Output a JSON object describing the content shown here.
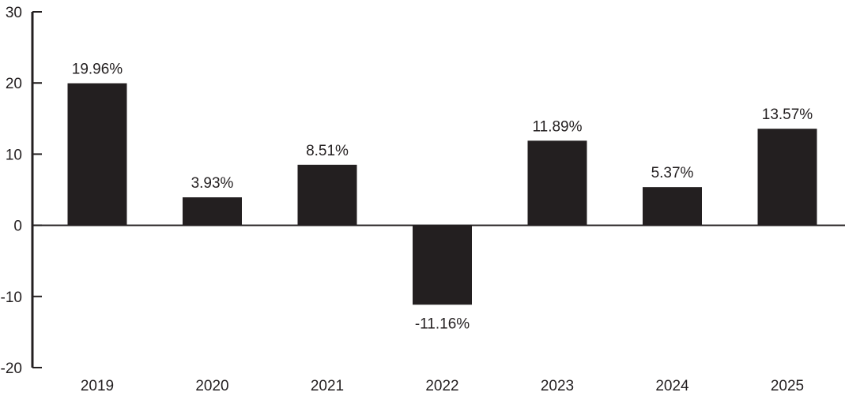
{
  "chart_data": {
    "type": "bar",
    "title": "",
    "xlabel": "",
    "ylabel": "",
    "categories": [
      "2019",
      "2020",
      "2021",
      "2022",
      "2023",
      "2024",
      "2025"
    ],
    "values": [
      19.96,
      3.93,
      8.51,
      -11.16,
      11.89,
      5.37,
      13.57
    ],
    "data_labels": [
      "19.96%",
      "3.93%",
      "8.51%",
      "-11.16%",
      "11.89%",
      "5.37%",
      "13.57%"
    ],
    "ylim": [
      -20,
      30
    ],
    "yticks": [
      30,
      20,
      10,
      0,
      -10,
      -20
    ],
    "ytick_labels": [
      "30",
      "20",
      "10",
      "0",
      "-10",
      "-20"
    ],
    "grid": false,
    "legend": "none",
    "bar_color": "#231f20",
    "axis_color": "#231f20"
  }
}
